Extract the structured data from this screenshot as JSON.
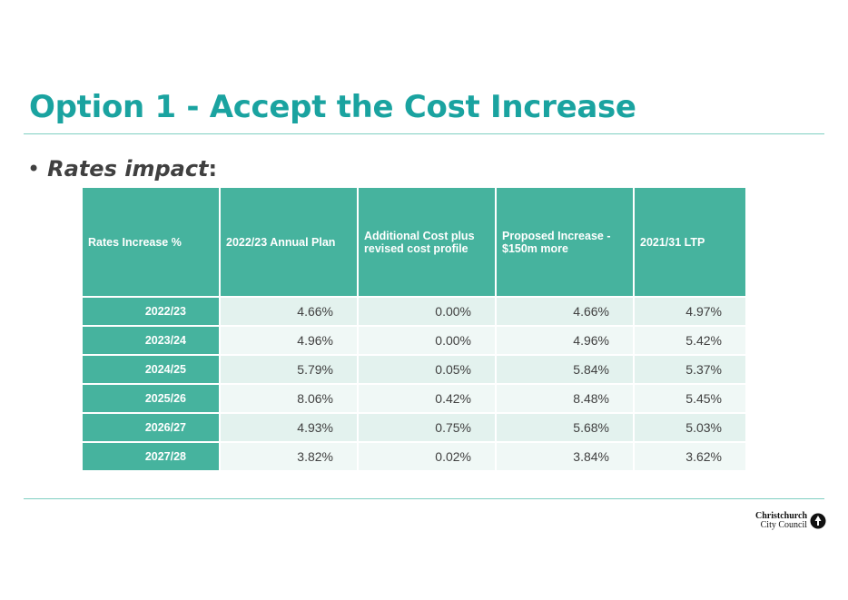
{
  "title": "Option 1 - Accept the Cost Increase",
  "bullet": {
    "text": "Rates impact",
    "colon": ":"
  },
  "table": {
    "headers": [
      "Rates Increase %",
      "2022/23 Annual Plan",
      "Additional Cost plus revised cost profile",
      "Proposed Increase - $150m more",
      "2021/31 LTP"
    ],
    "rows": [
      {
        "year": "2022/23",
        "annual_plan": "4.66%",
        "additional_cost": "0.00%",
        "proposed": "4.66%",
        "ltp": "4.97%"
      },
      {
        "year": "2023/24",
        "annual_plan": "4.96%",
        "additional_cost": "0.00%",
        "proposed": "4.96%",
        "ltp": "5.42%"
      },
      {
        "year": "2024/25",
        "annual_plan": "5.79%",
        "additional_cost": "0.05%",
        "proposed": "5.84%",
        "ltp": "5.37%"
      },
      {
        "year": "2025/26",
        "annual_plan": "8.06%",
        "additional_cost": "0.42%",
        "proposed": "8.48%",
        "ltp": "5.45%"
      },
      {
        "year": "2026/27",
        "annual_plan": "4.93%",
        "additional_cost": "0.75%",
        "proposed": "5.68%",
        "ltp": "5.03%"
      },
      {
        "year": "2027/28",
        "annual_plan": "3.82%",
        "additional_cost": "0.02%",
        "proposed": "3.84%",
        "ltp": "3.62%"
      }
    ]
  },
  "logo": {
    "line1": "Christchurch",
    "line2": "City Council",
    "icon": "tree-icon"
  },
  "colors": {
    "accent": "#1aa3a0",
    "header_fill": "#46b39e",
    "row_light": "#f0f8f6",
    "row_tint": "#e3f2ee",
    "rule": "#7fcfc2"
  }
}
